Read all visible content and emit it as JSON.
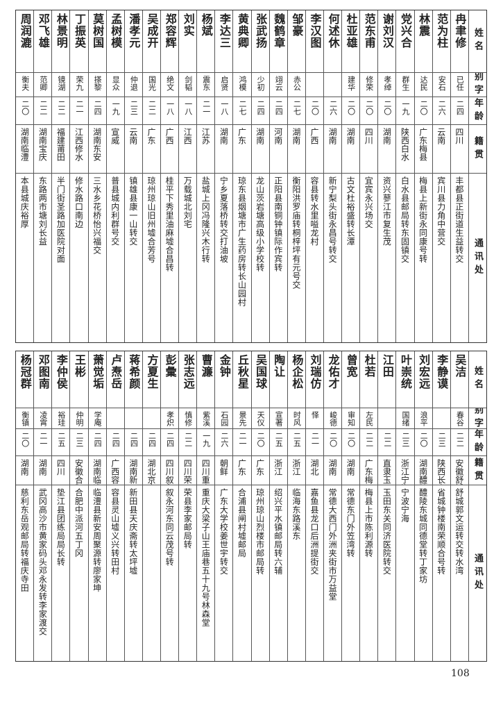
{
  "page_number": "108",
  "tables": [
    {
      "header": [
        "姓名",
        "别字",
        "年龄",
        "籍贯",
        "通讯处"
      ],
      "rows": [
        [
          "冉聿修",
          "已任",
          "二四",
          "四川",
          "丰都县正街道生益转交"
        ],
        [
          "范为柱",
          "安石",
          "二六",
          "云南",
          "宾川县力角中营交"
        ],
        [
          "林震",
          "达民",
          "二〇",
          "广东梅县",
          "梅县上新街永同康号转"
        ],
        [
          "党兴合",
          "群生",
          "一九",
          "陕西白水",
          "白水县邮局转东固镇交"
        ],
        [
          "谢刘汉",
          "孝绰",
          "二〇",
          "湖南",
          "资兴蓼江市复生茂"
        ],
        [
          "范东甫",
          "修荣",
          "二〇",
          "四川",
          "宜宾永兴场交"
        ],
        [
          "杜亚雄",
          "建华",
          "二〇",
          "湖南",
          "古文杜裕盛转长潭"
        ],
        [
          "何述休",
          null,
          "二六",
          "湖南",
          "新宁梨头街永昌号转交"
        ],
        [
          "李汉图",
          null,
          "二〇",
          "广西",
          "容县转水里嗌龙村"
        ],
        [
          "邹豪",
          "赤公",
          "二七",
          "湖南",
          "衡阳洪罗庙转桐梓坪有元号交"
        ],
        [
          "魏鹤章",
          "翊云",
          "二四",
          "河南",
          "正阳县南铜钟镇际作宾转"
        ],
        [
          "张武扬",
          "少初",
          "二四",
          "湖南",
          "龙山茨岩塘高级小学校转"
        ],
        [
          "黄典卿",
          "鸿模",
          "二七",
          "广东",
          "琼东县烟塘市广生药房转长山园村"
        ],
        [
          "李达三",
          "启贤",
          "一八",
          "湖南",
          "宁乡夏落桥转交打油坡"
        ],
        [
          "杨斌",
          "震东",
          "二一",
          "江苏",
          "盐城上冈冯隆兴木行转"
        ],
        [
          "刘实",
          "剑韬",
          "一八",
          "江西",
          "万载城北刘宅"
        ],
        [
          "郑容辉",
          "绝文",
          "一八",
          "广西",
          "桂平下秀里油麻墟合昌转"
        ],
        [
          "吴成开",
          "国光",
          "二二",
          "广东",
          "琼州琼山旧州墟合芳号"
        ],
        [
          "潘孝元",
          "仲退",
          "二三",
          "云南",
          "镇雄县康一山转交"
        ],
        [
          "孟树模",
          "显众",
          "一九",
          "宣威",
          "普县城内利群号交"
        ],
        [
          "莫树国",
          "搽黎",
          "二四",
          "湖南东安",
          "三水乡花桥怡兴福交"
        ],
        [
          "丁振英",
          "荣九",
          "二一",
          "江西修水",
          "修水路口南边"
        ],
        [
          "林景明",
          "镜湖",
          "二二",
          "福建莆田",
          "半门街圣路加医院对面"
        ],
        [
          "邓飞雄",
          "范卿",
          "二二",
          "湖南宝庆",
          "东路两市塘刘长益"
        ],
        [
          "周润漉",
          "衡夫",
          "二〇",
          "湖南临澧",
          "本县城庆裕厚"
        ]
      ]
    },
    {
      "header": [
        "姓名",
        "别字",
        "年龄",
        "籍贯",
        "通讯处"
      ],
      "rows": [
        [
          "吴洁",
          "春谷",
          "二二",
          "安徽舒城",
          "舒城郭文运转交转水湾"
        ],
        [
          "李静谟",
          null,
          "二三",
          "陕西长安",
          "省城钟楼南荣顺合号转"
        ],
        [
          "刘宏远",
          "浪平",
          "二〇",
          "湖南醴陵",
          "醴陵东城同德堂转丁家坊"
        ],
        [
          "叶崇统",
          "国绪",
          "二三",
          "浙江宁海",
          "宁波宁海"
        ],
        [
          "江田",
          null,
          "二二",
          "直隶玉田",
          "玉田东关同济医院转交"
        ],
        [
          "杜若",
          "左民",
          "二二",
          "广东梅县",
          "梅县上市陈利源转"
        ],
        [
          "曾宽",
          "审知",
          "二〇",
          "湖南",
          "常德东门外笠湾转"
        ],
        [
          "龙佑才",
          "峻德",
          "二〇",
          "湖南",
          "常德大西门外洲夹街市万益堂"
        ],
        [
          "刘瑞仿",
          "怿",
          "二一",
          "湖北",
          "嘉鱼县龙口后洲提街交"
        ],
        [
          "杨企松",
          "时风",
          "二五",
          "浙江",
          "临海东路溪东"
        ],
        [
          "陶让",
          "宣著",
          "二五",
          "浙江",
          "绍兴平水镇邮局转六辅"
        ],
        [
          "吴国球",
          "天仪",
          "二〇",
          "广东",
          "琼州琼山烈楼市邮局转"
        ],
        [
          "丘秋星",
          "景先",
          "二一",
          "广东",
          "合浦县闸村墟邮局"
        ],
        [
          "金钟",
          "石园",
          "二六",
          "朝鲜",
          "广东大学校姜世宇转交"
        ],
        [
          "曹濂",
          "紫溪",
          "一九",
          "四川重庆",
          "重庆大梁子山王庙巷五十九号林森堂"
        ],
        [
          "张志远",
          "慎修",
          "二二",
          "四川荣县",
          "荣县李家邮局转"
        ],
        [
          "彭彙",
          "孝炽",
          "二四",
          "四川叙永",
          "叙永河东同云茂号转"
        ],
        [
          "方夏生",
          null,
          "二四",
          "湖北京山",
          null
        ],
        [
          "蒋希颜",
          null,
          "二四",
          "湖南新田",
          "新田县天庆斋转太坪墟"
        ],
        [
          "卢焘岳",
          null,
          "二四",
          "广西容县",
          "容县灵山墟义兴转田村"
        ],
        [
          "萧觉垢",
          "学庵",
          "二四",
          "湖南临澧",
          "临澧县新安周聚源转廖家坤"
        ],
        [
          "王彬",
          "仲明",
          "二三",
          "安徽合肥",
          "合肥中派河五丁冈"
        ],
        [
          "李仲侯",
          "裕珪",
          "二五",
          "四川",
          "垫江县团练局局长转"
        ],
        [
          "邓图南",
          "凌霄",
          "二一",
          "湖南",
          "武冈高沙市黄家码头邓永发转李家渡交"
        ],
        [
          "杨冠群",
          "衡镇",
          "二〇",
          "湖南",
          "慈利东岳观邮局转福庆寺田"
        ]
      ]
    }
  ]
}
